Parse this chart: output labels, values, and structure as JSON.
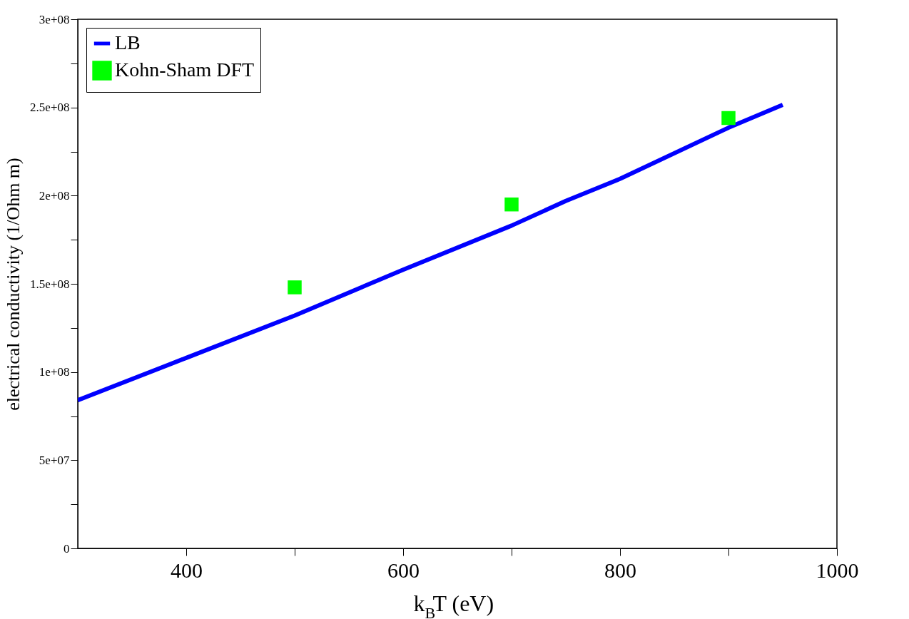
{
  "chart_data": {
    "type": "line",
    "xlabel": "k$_{B}$T (eV)",
    "ylabel": "electrical conductivity (1/Ohm m)",
    "xlim": [
      300,
      1000
    ],
    "xticks": [
      400,
      {
        "value": 500,
        "label": null
      },
      600,
      {
        "value": 700,
        "label": null
      },
      800,
      {
        "value": 900,
        "label": null
      },
      1000
    ],
    "ylim": [
      0,
      300000000
    ],
    "yticks": [
      {
        "value": 0,
        "label": "0"
      },
      {
        "value": 25000000,
        "label": null
      },
      {
        "value": 50000000,
        "label": "5e+07"
      },
      {
        "value": 75000000,
        "label": null
      },
      {
        "value": 100000000,
        "label": "1e+08"
      },
      {
        "value": 125000000,
        "label": null
      },
      {
        "value": 150000000,
        "label": "1.5e+08"
      },
      {
        "value": 175000000,
        "label": null
      },
      {
        "value": 200000000,
        "label": "2e+08"
      },
      {
        "value": 225000000,
        "label": null
      },
      {
        "value": 250000000,
        "label": "2.5e+08"
      },
      {
        "value": 275000000,
        "label": null
      },
      {
        "value": 300000000,
        "label": "3e+08"
      }
    ],
    "grid": false,
    "legend": "top left",
    "series": [
      {
        "name": "LB",
        "color": "#0000ff",
        "marker": "none",
        "line_style": "solid",
        "x": [
          300,
          400,
          500,
          600,
          700,
          750,
          800,
          900,
          950
        ],
        "values": [
          84000000,
          108000000,
          132000000,
          158000000,
          183000000,
          197000000,
          209500000,
          238500000,
          251500000
        ]
      },
      {
        "name": "Kohn-Sham DFT",
        "type": "scatter",
        "color": "#00ff00",
        "marker": "square",
        "x": [
          500,
          700,
          900
        ],
        "values": [
          148000000,
          195000000,
          244000000
        ]
      }
    ]
  }
}
